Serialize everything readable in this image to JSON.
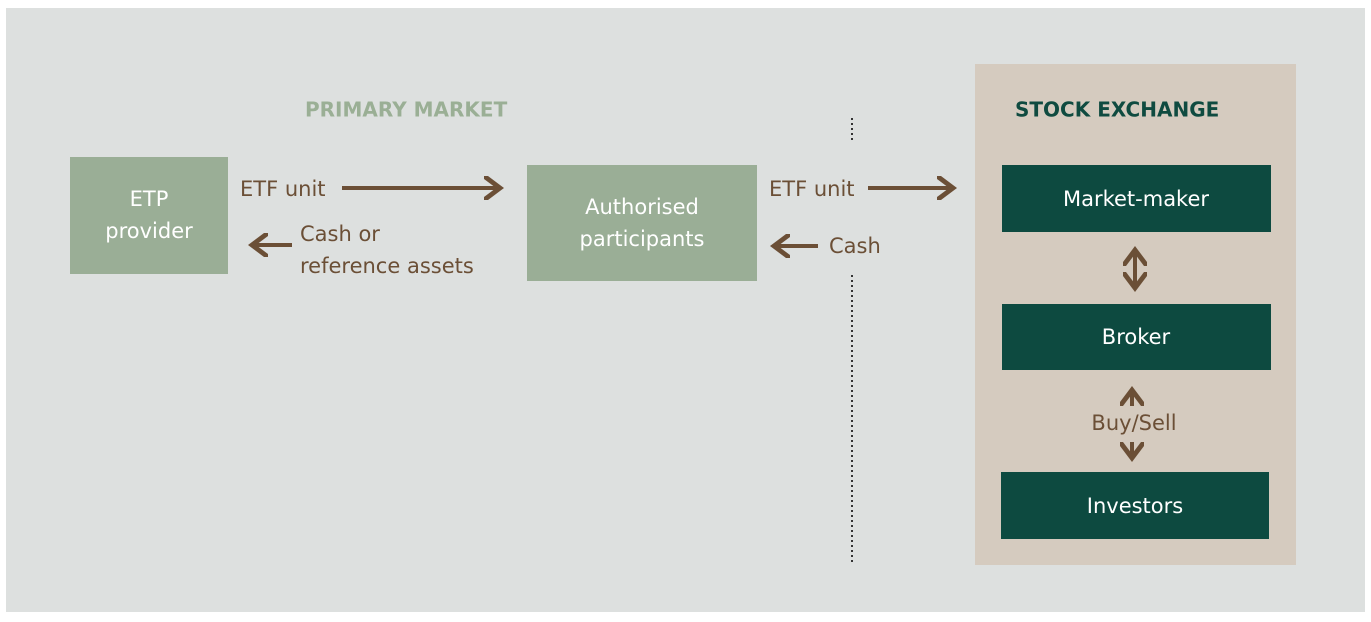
{
  "primary_market": {
    "title": "PRIMARY MARKET",
    "etp_provider": [
      "ETP",
      "provider"
    ],
    "authorised_participants": [
      "Authorised",
      "participants"
    ],
    "flow_1_out": "ETF unit",
    "flow_1_back": [
      "Cash or",
      "reference assets"
    ],
    "flow_2_out": "ETF unit",
    "flow_2_back": "Cash"
  },
  "stock_exchange": {
    "title": "STOCK EXCHANGE",
    "market_maker": "Market-maker",
    "broker": "Broker",
    "buy_sell": "Buy/Sell",
    "investors": "Investors"
  }
}
